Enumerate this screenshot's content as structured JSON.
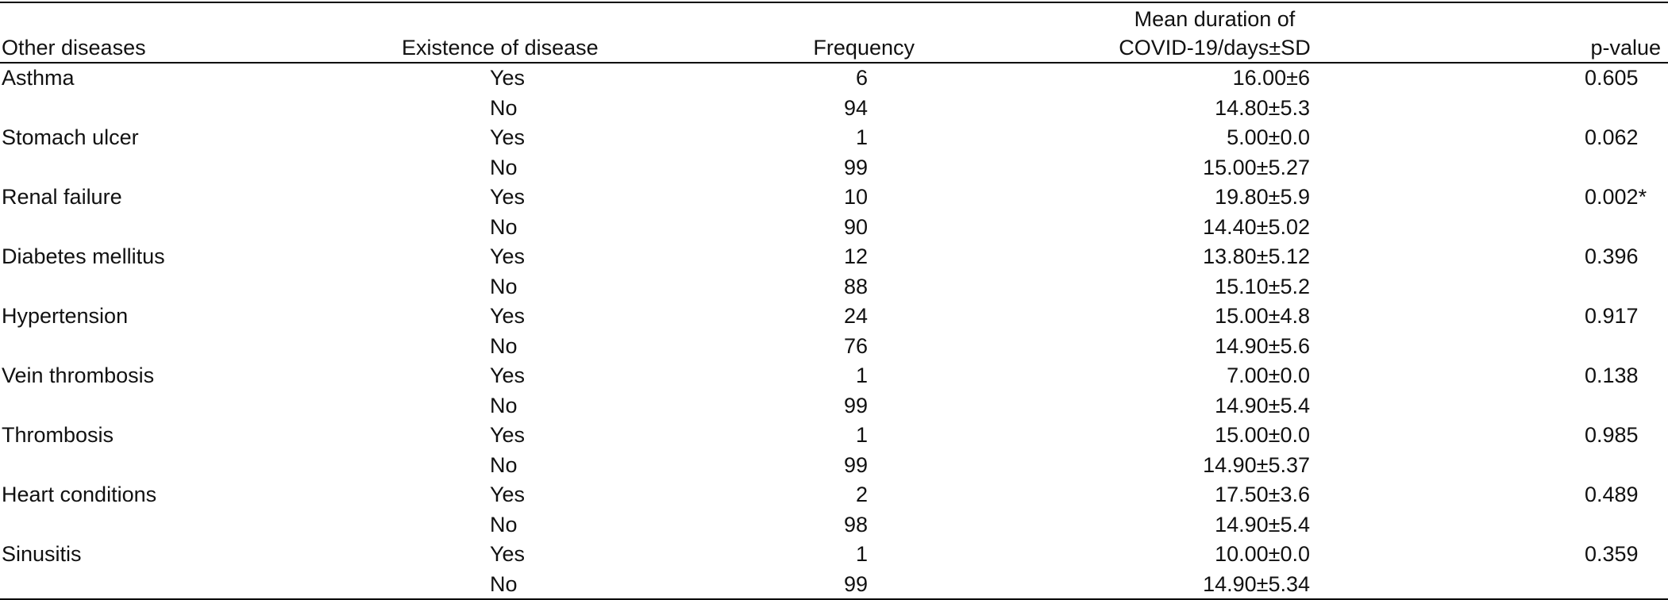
{
  "table": {
    "headers": {
      "disease": "Other diseases",
      "existence": "Existence of disease",
      "frequency": "Frequency",
      "duration": "Mean duration of COVID-19/days±SD",
      "duration_line1": "Mean duration of",
      "duration_line2": "COVID-19/days±SD",
      "pvalue": "p-value"
    },
    "groups": [
      {
        "disease": "Asthma",
        "p_value": "0.605",
        "rows": [
          {
            "existence": "Yes",
            "frequency": "6",
            "duration": "16.00±6"
          },
          {
            "existence": "No",
            "frequency": "94",
            "duration": "14.80±5.3"
          }
        ]
      },
      {
        "disease": "Stomach ulcer",
        "p_value": "0.062",
        "rows": [
          {
            "existence": "Yes",
            "frequency": "1",
            "duration": "5.00±0.0"
          },
          {
            "existence": "No",
            "frequency": "99",
            "duration": "15.00±5.27"
          }
        ]
      },
      {
        "disease": "Renal failure",
        "p_value": "0.002*",
        "rows": [
          {
            "existence": "Yes",
            "frequency": "10",
            "duration": "19.80±5.9"
          },
          {
            "existence": "No",
            "frequency": "90",
            "duration": "14.40±5.02"
          }
        ]
      },
      {
        "disease": "Diabetes mellitus",
        "p_value": "0.396",
        "rows": [
          {
            "existence": "Yes",
            "frequency": "12",
            "duration": "13.80±5.12"
          },
          {
            "existence": "No",
            "frequency": "88",
            "duration": "15.10±5.2"
          }
        ]
      },
      {
        "disease": "Hypertension",
        "p_value": "0.917",
        "rows": [
          {
            "existence": "Yes",
            "frequency": "24",
            "duration": "15.00±4.8"
          },
          {
            "existence": "No",
            "frequency": "76",
            "duration": "14.90±5.6"
          }
        ]
      },
      {
        "disease": "Vein thrombosis",
        "p_value": "0.138",
        "rows": [
          {
            "existence": "Yes",
            "frequency": "1",
            "duration": "7.00±0.0"
          },
          {
            "existence": "No",
            "frequency": "99",
            "duration": "14.90±5.4"
          }
        ]
      },
      {
        "disease": "Thrombosis",
        "p_value": "0.985",
        "rows": [
          {
            "existence": "Yes",
            "frequency": "1",
            "duration": "15.00±0.0"
          },
          {
            "existence": "No",
            "frequency": "99",
            "duration": "14.90±5.37"
          }
        ]
      },
      {
        "disease": "Heart conditions",
        "p_value": "0.489",
        "rows": [
          {
            "existence": "Yes",
            "frequency": "2",
            "duration": "17.50±3.6"
          },
          {
            "existence": "No",
            "frequency": "98",
            "duration": "14.90±5.4"
          }
        ]
      },
      {
        "disease": "Sinusitis",
        "p_value": "0.359",
        "rows": [
          {
            "existence": "Yes",
            "frequency": "1",
            "duration": "10.00±0.0"
          },
          {
            "existence": "No",
            "frequency": "99",
            "duration": "14.90±5.34"
          }
        ]
      }
    ]
  }
}
